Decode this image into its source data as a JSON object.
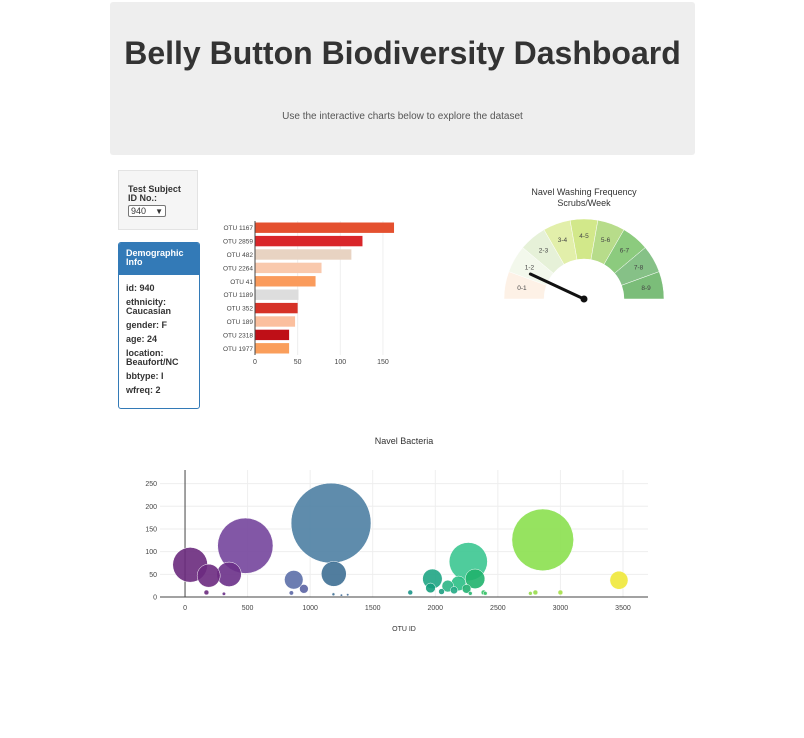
{
  "header": {
    "title": "Belly Button Biodiversity Dashboard",
    "subtitle": "Use the interactive charts below to explore the dataset"
  },
  "selector": {
    "label": "Test Subject ID No.:",
    "value": "940"
  },
  "demographics": {
    "heading": "Demographic Info",
    "rows": [
      {
        "key": "id",
        "value": "940"
      },
      {
        "key": "ethnicity",
        "value": "Caucasian"
      },
      {
        "key": "gender",
        "value": "F"
      },
      {
        "key": "age",
        "value": "24"
      },
      {
        "key": "location",
        "value": "Beaufort/NC"
      },
      {
        "key": "bbtype",
        "value": "I"
      },
      {
        "key": "wfreq",
        "value": "2"
      }
    ]
  },
  "chart_data": [
    {
      "type": "bar",
      "orientation": "horizontal",
      "categories": [
        "OTU 1167",
        "OTU 2859",
        "OTU 482",
        "OTU 2264",
        "OTU 41",
        "OTU 1189",
        "OTU 352",
        "OTU 189",
        "OTU 2318",
        "OTU 1977"
      ],
      "values": [
        163,
        126,
        113,
        78,
        71,
        51,
        50,
        47,
        40,
        40
      ],
      "colors": [
        "#e4502f",
        "#d9262a",
        "#e8d3c2",
        "#f9c9ad",
        "#fa9b5c",
        "#dddddd",
        "#d63227",
        "#fbbf9e",
        "#bf0f17",
        "#fa9e5b"
      ],
      "xticks": [
        0,
        50,
        100,
        150
      ],
      "xlim": [
        0,
        170
      ]
    },
    {
      "type": "gauge",
      "title": "Navel Washing Frequency",
      "subtitle": "Scrubs/Week",
      "value": 2,
      "range": [
        0,
        9
      ],
      "segments": [
        {
          "label": "0-1",
          "color": "#fdf1e6"
        },
        {
          "label": "1-2",
          "color": "#f3f8ec"
        },
        {
          "label": "2-3",
          "color": "#e6f1d8"
        },
        {
          "label": "3-4",
          "color": "#e2efaa"
        },
        {
          "label": "4-5",
          "color": "#d2e88a"
        },
        {
          "label": "5-6",
          "color": "#b7dc8a"
        },
        {
          "label": "6-7",
          "color": "#8ccb7e"
        },
        {
          "label": "7-8",
          "color": "#86c187"
        },
        {
          "label": "8-9",
          "color": "#7bbd79"
        }
      ]
    },
    {
      "type": "scatter",
      "title": "Navel Bacteria",
      "xlabel": "OTU ID",
      "xlim": [
        -200,
        3700
      ],
      "ylim": [
        0,
        280
      ],
      "xticks": [
        0,
        500,
        1000,
        1500,
        2000,
        2500,
        3000,
        3500
      ],
      "yticks": [
        0,
        50,
        100,
        150,
        200,
        250
      ],
      "points": [
        {
          "x": 1167,
          "y": 163,
          "size": 163,
          "color": "#4e7fa3"
        },
        {
          "x": 2859,
          "y": 126,
          "size": 126,
          "color": "#8be04f"
        },
        {
          "x": 482,
          "y": 113,
          "size": 113,
          "color": "#74459c"
        },
        {
          "x": 2264,
          "y": 78,
          "size": 78,
          "color": "#3cc691"
        },
        {
          "x": 41,
          "y": 71,
          "size": 71,
          "color": "#6a2a7d"
        },
        {
          "x": 1189,
          "y": 51,
          "size": 51,
          "color": "#3e6f94"
        },
        {
          "x": 352,
          "y": 50,
          "size": 50,
          "color": "#6a3088"
        },
        {
          "x": 189,
          "y": 47,
          "size": 47,
          "color": "#6c2a80"
        },
        {
          "x": 2318,
          "y": 40,
          "size": 40,
          "color": "#20b36d"
        },
        {
          "x": 1977,
          "y": 40,
          "size": 40,
          "color": "#1fa584"
        },
        {
          "x": 869,
          "y": 38,
          "size": 38,
          "color": "#5c6fa8"
        },
        {
          "x": 3468,
          "y": 37,
          "size": 37,
          "color": "#f0e83a"
        },
        {
          "x": 2186,
          "y": 30,
          "size": 30,
          "color": "#2bbf85"
        },
        {
          "x": 2100,
          "y": 24,
          "size": 24,
          "color": "#2bb585"
        },
        {
          "x": 1962,
          "y": 20,
          "size": 20,
          "color": "#159f7d"
        },
        {
          "x": 950,
          "y": 18,
          "size": 18,
          "color": "#5a63a3"
        },
        {
          "x": 2250,
          "y": 18,
          "size": 18,
          "color": "#21b070"
        },
        {
          "x": 2150,
          "y": 15,
          "size": 15,
          "color": "#22a884"
        },
        {
          "x": 2050,
          "y": 12,
          "size": 12,
          "color": "#1e9f82"
        },
        {
          "x": 2386,
          "y": 10,
          "size": 10,
          "color": "#39c36a"
        },
        {
          "x": 1800,
          "y": 10,
          "size": 10,
          "color": "#1a9588"
        },
        {
          "x": 3000,
          "y": 10,
          "size": 10,
          "color": "#a5e047"
        },
        {
          "x": 2800,
          "y": 10,
          "size": 10,
          "color": "#97db4a"
        },
        {
          "x": 2760,
          "y": 8,
          "size": 8,
          "color": "#94d94b"
        },
        {
          "x": 2400,
          "y": 8,
          "size": 8,
          "color": "#3dc46c"
        },
        {
          "x": 2280,
          "y": 8,
          "size": 8,
          "color": "#26b46f"
        },
        {
          "x": 171,
          "y": 10,
          "size": 10,
          "color": "#6a2a7d"
        },
        {
          "x": 850,
          "y": 9,
          "size": 9,
          "color": "#5b67a5"
        },
        {
          "x": 1186,
          "y": 6,
          "size": 6,
          "color": "#3e6f94"
        },
        {
          "x": 311,
          "y": 7,
          "size": 7,
          "color": "#6a3088"
        },
        {
          "x": 1300,
          "y": 5,
          "size": 5,
          "color": "#456f99"
        },
        {
          "x": 1250,
          "y": 4,
          "size": 4,
          "color": "#456f99"
        }
      ]
    }
  ]
}
